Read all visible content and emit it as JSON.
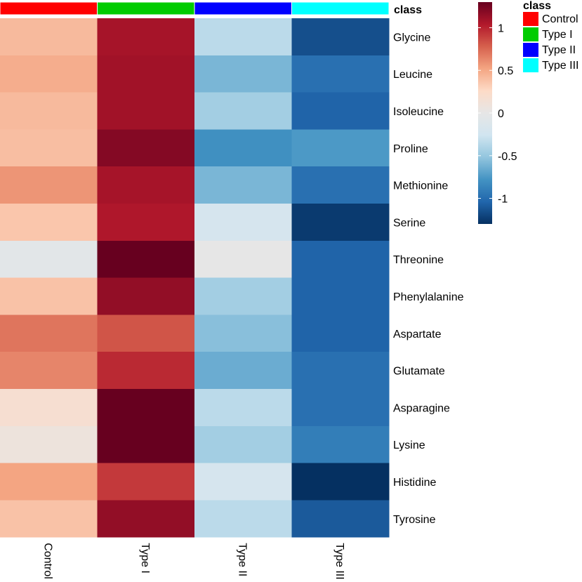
{
  "chart_data": {
    "type": "heatmap",
    "annotation_title": "class",
    "columns": [
      {
        "name": "Control",
        "class": "Control"
      },
      {
        "name": "Type I",
        "class": "Type I"
      },
      {
        "name": "Type II",
        "class": "Type II"
      },
      {
        "name": "Type III",
        "class": "Type III"
      }
    ],
    "rows": [
      "Glycine",
      "Leucine",
      "Isoleucine",
      "Proline",
      "Methionine",
      "Serine",
      "Threonine",
      "Phenylalanine",
      "Aspartate",
      "Glutamate",
      "Asparagine",
      "Lysine",
      "Histidine",
      "Tyrosine"
    ],
    "values": [
      [
        0.42,
        1.08,
        -0.35,
        -1.15
      ],
      [
        0.48,
        1.1,
        -0.6,
        -0.98
      ],
      [
        0.42,
        1.1,
        -0.45,
        -1.05
      ],
      [
        0.4,
        1.2,
        -0.8,
        -0.75
      ],
      [
        0.58,
        1.08,
        -0.6,
        -0.98
      ],
      [
        0.36,
        1.05,
        -0.2,
        -1.25
      ],
      [
        -0.05,
        1.3,
        0.0,
        -1.05
      ],
      [
        0.38,
        1.15,
        -0.45,
        -1.05
      ],
      [
        0.7,
        0.82,
        -0.55,
        -1.05
      ],
      [
        0.64,
        0.98,
        -0.65,
        -0.98
      ],
      [
        0.18,
        1.3,
        -0.35,
        -0.98
      ],
      [
        0.08,
        1.35,
        -0.45,
        -0.9
      ],
      [
        0.52,
        0.92,
        -0.2,
        -1.3
      ],
      [
        0.38,
        1.15,
        -0.35,
        -1.1
      ]
    ],
    "color_scale": {
      "min": -1.3,
      "max": 1.3,
      "stops": [
        "#053061",
        "#2166ac",
        "#4393c3",
        "#92c5de",
        "#d1e5f0",
        "#e6e6e6",
        "#fddbc7",
        "#f4a582",
        "#d6604d",
        "#b2182b",
        "#67001f"
      ]
    },
    "colorbar_ticks": [
      1,
      0.5,
      0,
      -0.5,
      -1
    ],
    "colorbar_tick_labels": [
      "1",
      "0.5",
      "0",
      "-0.5",
      "-1"
    ],
    "legend": [
      {
        "label": "Control",
        "color": "#ff0000"
      },
      {
        "label": "Type I",
        "color": "#00cc00"
      },
      {
        "label": "Type II",
        "color": "#0000ff"
      },
      {
        "label": "Type III",
        "color": "#00ffff"
      }
    ]
  }
}
